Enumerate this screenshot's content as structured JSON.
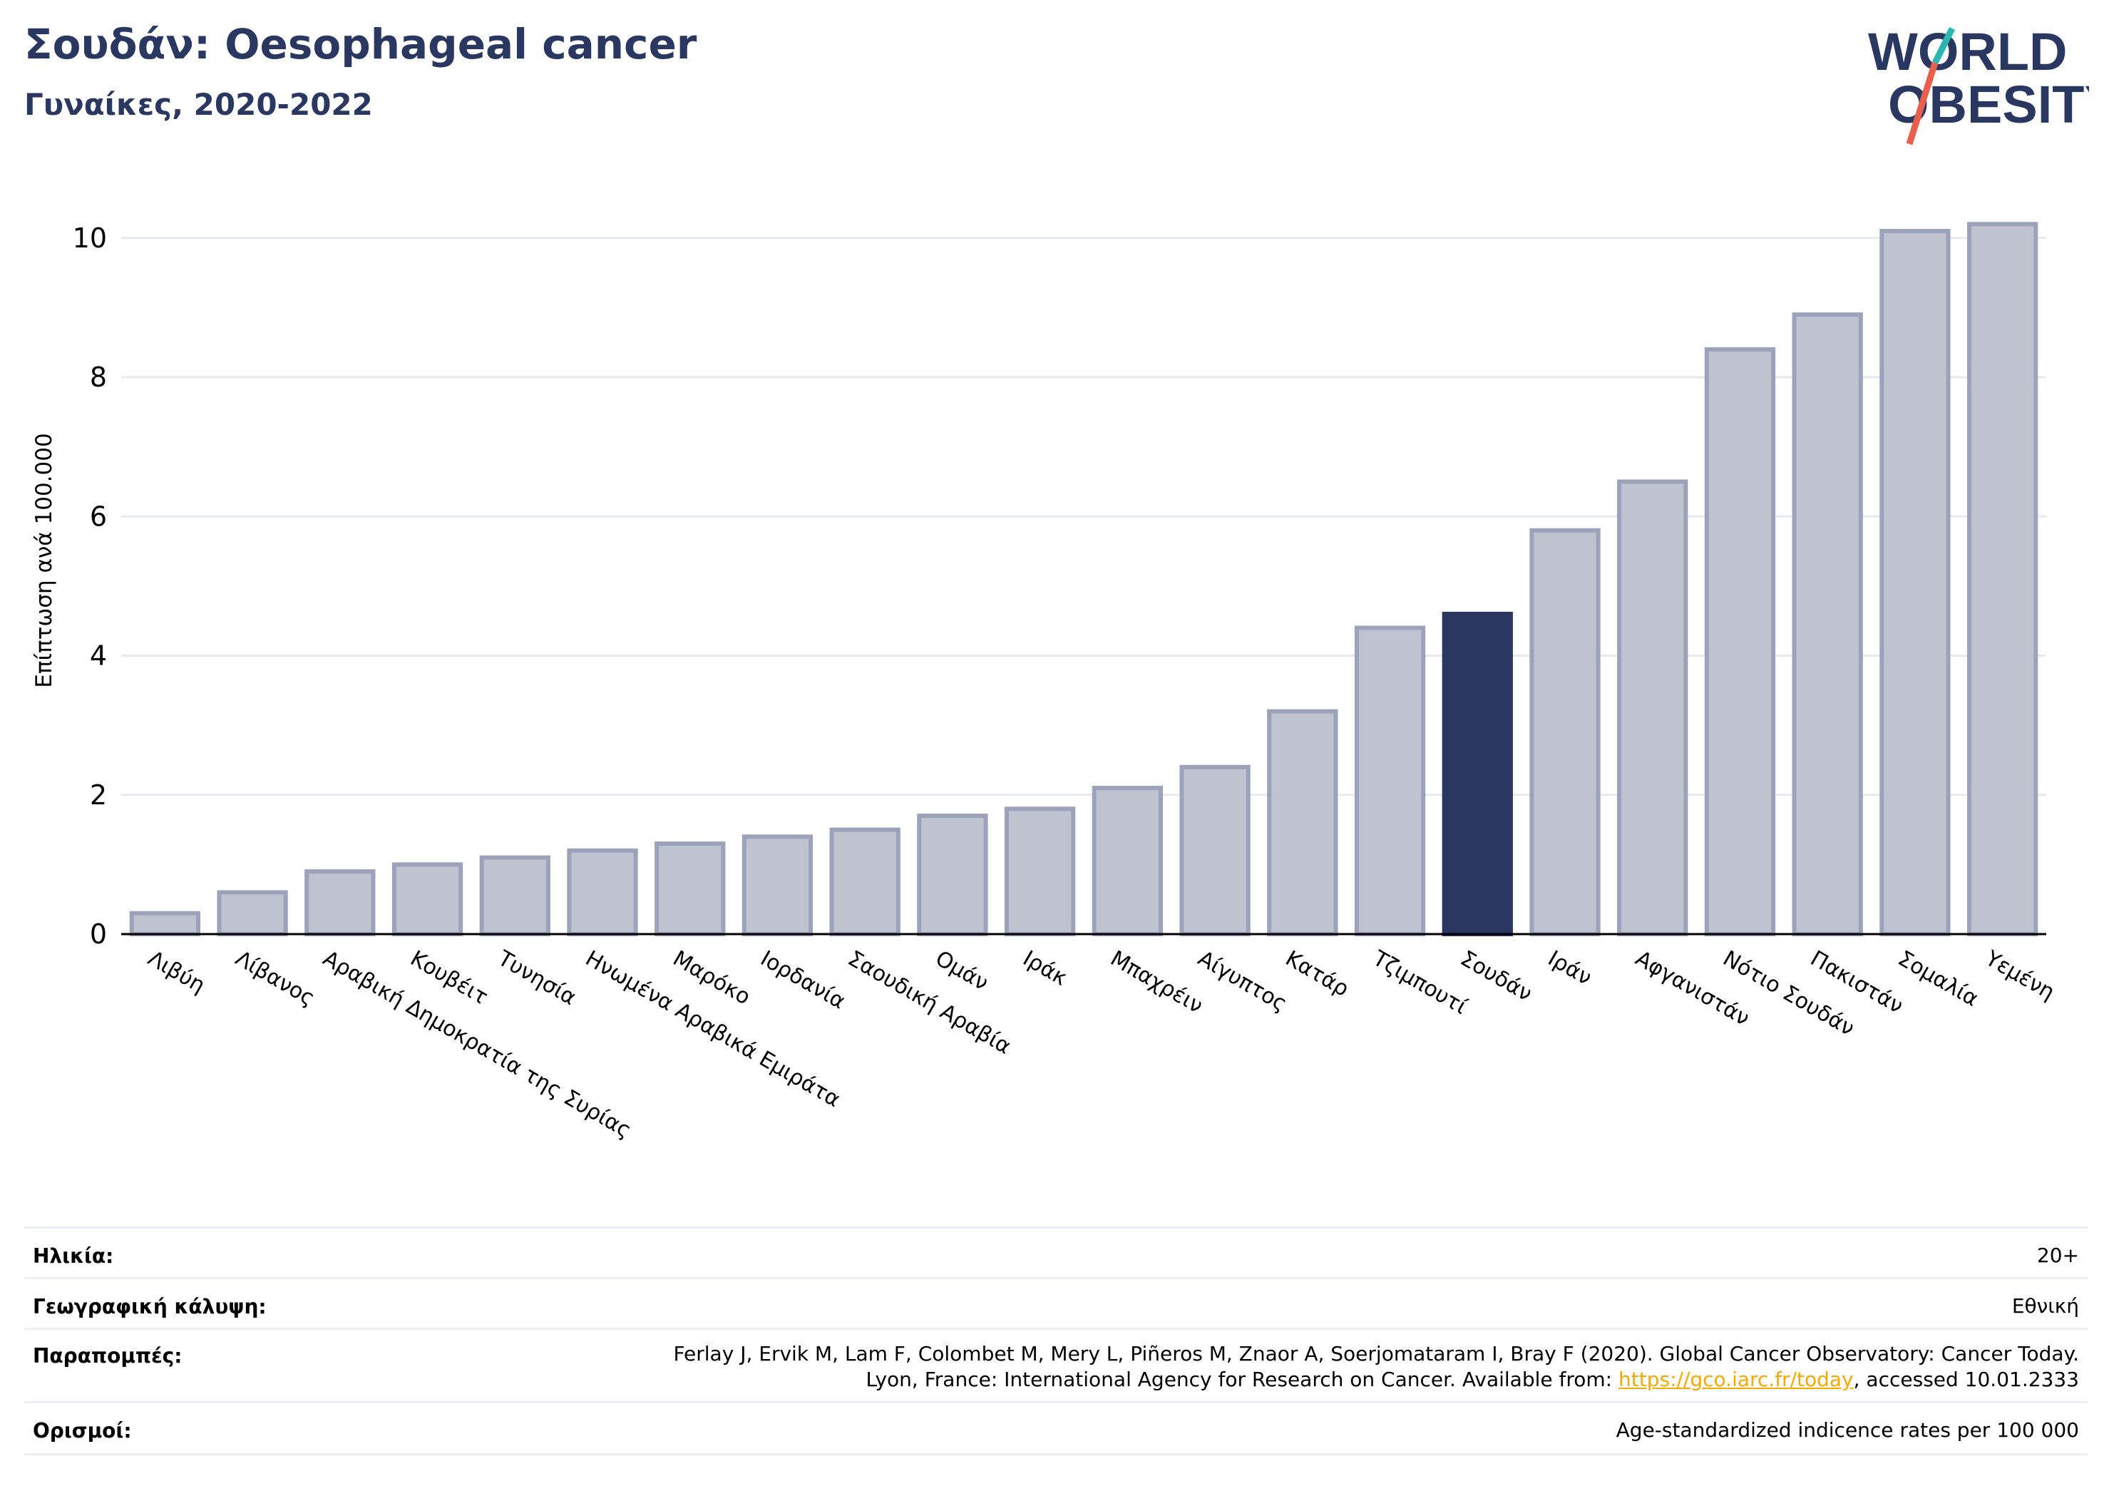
{
  "header": {
    "title": "Σουδάν: Oesophageal cancer",
    "subtitle": "Γυναίκες, 2020-2022"
  },
  "logo": {
    "line1": "WORLD",
    "line2": "OBESITY",
    "accent_teal": "#2bb6b0",
    "accent_red": "#e8604c",
    "text_color": "#2a3761"
  },
  "chart_data": {
    "type": "bar",
    "ylabel": "Επίπτωση ανά 100.000",
    "ylim": [
      0,
      10.5
    ],
    "yticks": [
      0,
      2,
      4,
      6,
      8,
      10
    ],
    "grid": true,
    "categories": [
      "Λιβύη",
      "Λίβανος",
      "Αραβική Δημοκρατία της Συρίας",
      "Κουβέιτ",
      "Τυνησία",
      "Ηνωμένα Αραβικά Εμιράτα",
      "Μαρόκο",
      "Ιορδανία",
      "Σαουδική Αραβία",
      "Ομάν",
      "Ιράκ",
      "Μπαχρέιν",
      "Αίγυπτος",
      "Κατάρ",
      "Τζιμπουτί",
      "Σουδάν",
      "Ιράν",
      "Αφγανιστάν",
      "Νότιο Σουδάν",
      "Πακιστάν",
      "Σομαλία",
      "Υεμένη"
    ],
    "values": [
      0.3,
      0.6,
      0.9,
      1.0,
      1.1,
      1.2,
      1.3,
      1.4,
      1.5,
      1.7,
      1.8,
      2.1,
      2.4,
      3.2,
      4.4,
      4.6,
      5.8,
      6.5,
      8.4,
      8.9,
      10.1,
      10.2
    ],
    "highlight": "Σουδάν",
    "colors": {
      "bar": "#bfc3d0",
      "bar_border": "#9ca2ba",
      "highlight": "#2a3761"
    }
  },
  "info": {
    "age_label": "Ηλικία:",
    "age_value": "20+",
    "coverage_label": "Γεωγραφική κάλυψη:",
    "coverage_value": "Εθνική",
    "refs_label": "Παραπομπές:",
    "refs_line1": "Ferlay J, Ervik M, Lam F, Colombet M, Mery L, Piñeros M, Znaor A, Soerjomataram I, Bray F (2020). Global Cancer Observatory: Cancer Today.",
    "refs_line2_pre": "Lyon, France: International Agency for Research on Cancer. Available from: ",
    "refs_link": "https://gco.iarc.fr/today",
    "refs_line2_post": ", accessed 10.01.2333",
    "defs_label": "Ορισμοί:",
    "defs_value": "Age-standardized indicence rates per 100 000"
  }
}
